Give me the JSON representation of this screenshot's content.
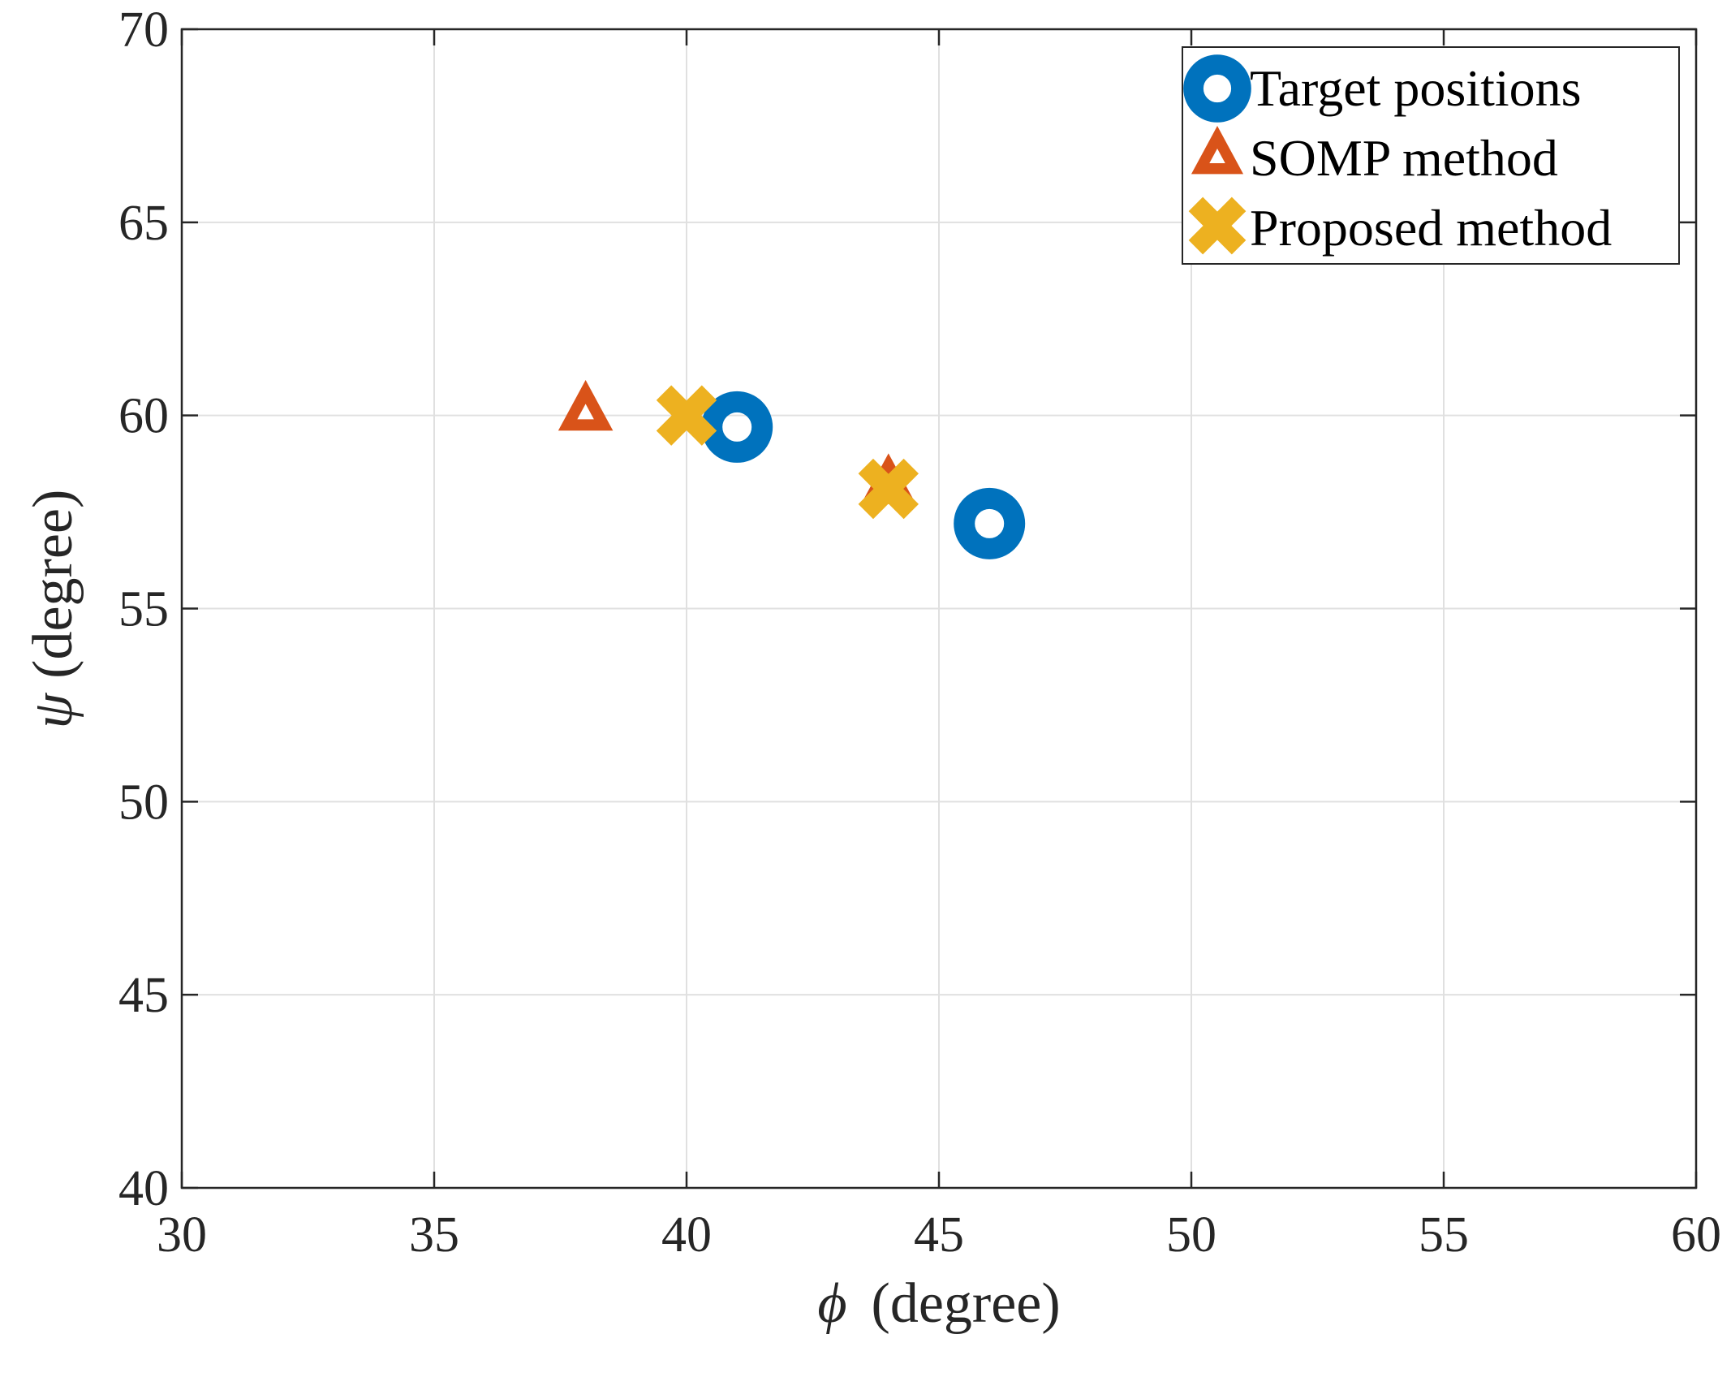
{
  "chart_data": {
    "type": "scatter",
    "title": "",
    "xlabel_symbol": "ϕ",
    "xlabel_unit": "(degree)",
    "ylabel_symbol": "ψ",
    "ylabel_unit": "(degree)",
    "xlim": [
      30,
      60
    ],
    "ylim": [
      40,
      70
    ],
    "xticks": [
      30,
      35,
      40,
      45,
      50,
      55,
      60
    ],
    "yticks": [
      40,
      45,
      50,
      55,
      60,
      65,
      70
    ],
    "xtick_labels": [
      "30",
      "35",
      "40",
      "45",
      "50",
      "55",
      "60"
    ],
    "ytick_labels": [
      "40",
      "45",
      "50",
      "55",
      "60",
      "65",
      "70"
    ],
    "grid": true,
    "legend_position": "top-right",
    "series": [
      {
        "name": "Target positions",
        "marker": "circle",
        "color": "#0072BD",
        "points": [
          {
            "x": 41,
            "y": 59.7
          },
          {
            "x": 46,
            "y": 57.2
          }
        ]
      },
      {
        "name": "SOMP method",
        "marker": "triangle",
        "color": "#D95319",
        "points": [
          {
            "x": 38,
            "y": 60.1
          },
          {
            "x": 44,
            "y": 58.2
          }
        ]
      },
      {
        "name": "Proposed method",
        "marker": "x",
        "color": "#EDB120",
        "points": [
          {
            "x": 40,
            "y": 60.0
          },
          {
            "x": 44,
            "y": 58.1
          }
        ]
      }
    ]
  }
}
